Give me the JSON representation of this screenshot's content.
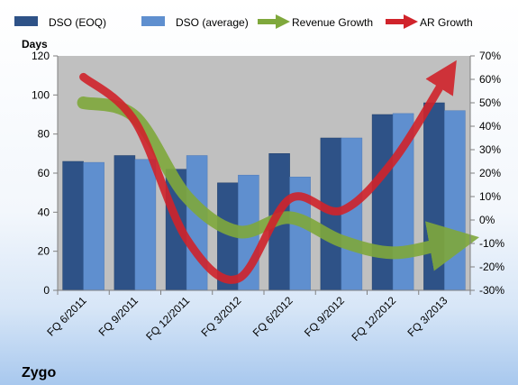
{
  "chart_data": {
    "type": "bar",
    "title": "",
    "company": "Zygo",
    "categories": [
      "FQ 6/2011",
      "FQ 9/2011",
      "FQ 12/2011",
      "FQ 3/2012",
      "FQ 6/2012",
      "FQ 9/2012",
      "FQ 12/2012",
      "FQ 3/2013"
    ],
    "ylabel": "Days",
    "ylim": [
      0,
      120
    ],
    "yticks": [
      0,
      20,
      40,
      60,
      80,
      100,
      120
    ],
    "y2lim": [
      -30,
      70
    ],
    "y2ticks": [
      "-30%",
      "-20%",
      "-10%",
      "0%",
      "10%",
      "20%",
      "30%",
      "40%",
      "50%",
      "60%",
      "70%"
    ],
    "grid": false,
    "legend_placement": "top",
    "bar_series": [
      {
        "name": "DSO (EOQ)",
        "color": "#2e5287",
        "values": [
          66,
          69,
          62,
          55,
          70,
          78,
          90,
          96
        ]
      },
      {
        "name": "DSO (average)",
        "color": "#5f8fcf",
        "values": [
          65.5,
          67,
          69,
          59,
          58,
          78,
          90.5,
          92
        ]
      }
    ],
    "line_series": [
      {
        "name": "Revenue Growth",
        "color": "#7fa83c",
        "axis": "right",
        "values": [
          50,
          44,
          10,
          -5,
          1,
          -9,
          -14,
          -10
        ]
      },
      {
        "name": "AR Growth",
        "color": "#d0232b",
        "axis": "right",
        "values": [
          61,
          42,
          -8,
          -25,
          9,
          4,
          25,
          60
        ]
      }
    ]
  }
}
